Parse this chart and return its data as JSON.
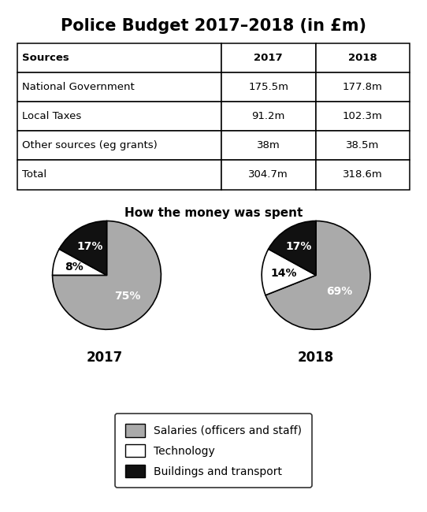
{
  "title": "Police Budget 2017–2018 (in £m)",
  "table_headers": [
    "Sources",
    "2017",
    "2018"
  ],
  "table_rows": [
    [
      "National Government",
      "175.5m",
      "177.8m"
    ],
    [
      "Local Taxes",
      "91.2m",
      "102.3m"
    ],
    [
      "Other sources (eg grants)",
      "38m",
      "38.5m"
    ],
    [
      "Total",
      "304.7m",
      "318.6m"
    ]
  ],
  "pie_title": "How the money was spent",
  "pie_2017": [
    75,
    8,
    17
  ],
  "pie_2018": [
    69,
    14,
    17
  ],
  "pie_labels_2017": [
    "75%",
    "8%",
    "17%"
  ],
  "pie_labels_2018": [
    "69%",
    "14%",
    "17%"
  ],
  "pie_colors": [
    "#aaaaaa",
    "#ffffff",
    "#111111"
  ],
  "pie_year_labels": [
    "2017",
    "2018"
  ],
  "legend_labels": [
    "Salaries (officers and staff)",
    "Technology",
    "Buildings and transport"
  ],
  "legend_colors": [
    "#aaaaaa",
    "#ffffff",
    "#111111"
  ],
  "background_color": "#ffffff"
}
